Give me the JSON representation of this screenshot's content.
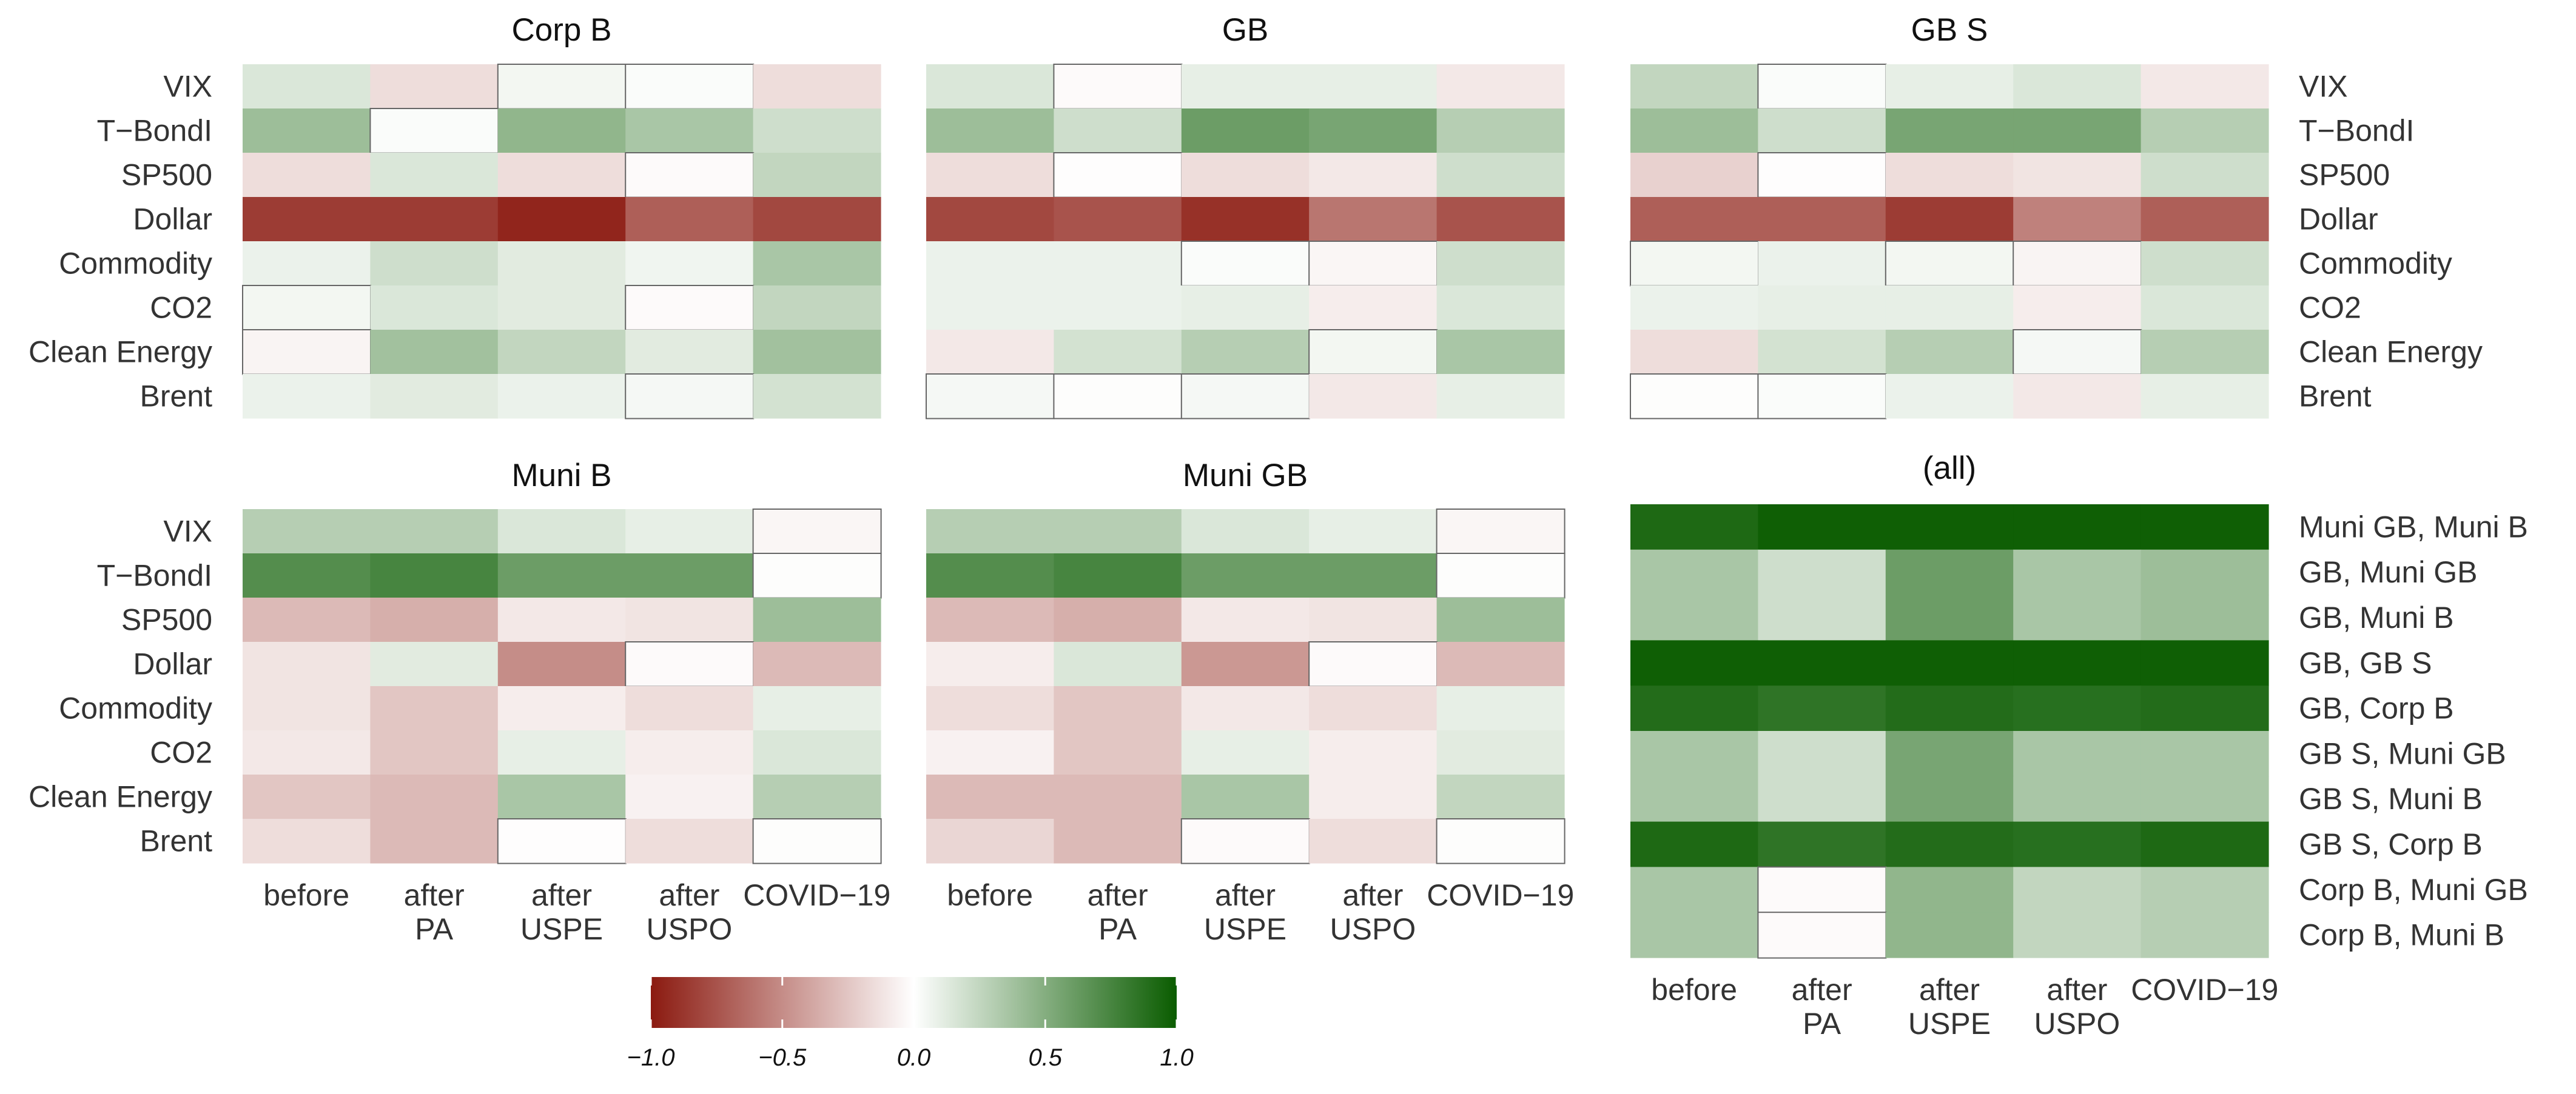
{
  "colorbar": {
    "min": -1.0,
    "max": 1.0,
    "colors": {
      "neg": "#8b1a10",
      "mid": "#ffffff",
      "pos": "#0a5c00"
    },
    "ticks": [
      "−1.0",
      "−0.5",
      "0.0",
      "0.5",
      "1.0"
    ],
    "tick_values": [
      -1.0,
      -0.5,
      0.0,
      0.5,
      1.0
    ]
  },
  "chart_data": [
    {
      "type": "heatmap",
      "title": "Corp B",
      "rows": [
        "VIX",
        "T−BondI",
        "SP500",
        "Dollar",
        "Commodity",
        "CO2",
        "Clean Energy",
        "Brent"
      ],
      "columns": [
        "before",
        "after PA",
        "after USPE",
        "after USPO",
        "COVID−19"
      ],
      "values": [
        [
          0.15,
          -0.15,
          0.05,
          0.02,
          -0.15
        ],
        [
          0.4,
          0.02,
          0.45,
          0.35,
          0.2
        ],
        [
          -0.15,
          0.15,
          -0.15,
          -0.02,
          0.25
        ],
        [
          -0.85,
          -0.85,
          -0.95,
          -0.7,
          -0.8
        ],
        [
          0.08,
          0.2,
          0.12,
          0.06,
          0.35
        ],
        [
          0.05,
          0.15,
          0.12,
          -0.02,
          0.25
        ],
        [
          -0.05,
          0.38,
          0.25,
          0.12,
          0.38
        ],
        [
          0.08,
          0.12,
          0.08,
          0.04,
          0.18
        ]
      ]
    },
    {
      "type": "heatmap",
      "title": "GB",
      "rows": [
        "VIX",
        "T−BondI",
        "SP500",
        "Dollar",
        "Commodity",
        "CO2",
        "Clean Energy",
        "Brent"
      ],
      "columns": [
        "before",
        "after PA",
        "after USPE",
        "after USPO",
        "COVID−19"
      ],
      "values": [
        [
          0.15,
          -0.02,
          0.1,
          0.1,
          -0.1
        ],
        [
          0.4,
          0.2,
          0.6,
          0.55,
          0.3
        ],
        [
          -0.15,
          -0.01,
          -0.15,
          -0.1,
          0.2
        ],
        [
          -0.8,
          -0.75,
          -0.9,
          -0.6,
          -0.75
        ],
        [
          0.08,
          0.08,
          0.02,
          -0.04,
          0.2
        ],
        [
          0.08,
          0.08,
          0.1,
          -0.08,
          0.15
        ],
        [
          -0.1,
          0.18,
          0.3,
          0.05,
          0.35
        ],
        [
          0.04,
          0.01,
          0.04,
          -0.1,
          0.1
        ]
      ]
    },
    {
      "type": "heatmap",
      "title": "GB S",
      "rows": [
        "VIX",
        "T−BondI",
        "SP500",
        "Dollar",
        "Commodity",
        "CO2",
        "Clean Energy",
        "Brent"
      ],
      "columns": [
        "before",
        "after PA",
        "after USPE",
        "after USPO",
        "COVID−19"
      ],
      "values": [
        [
          0.25,
          0.02,
          0.1,
          0.15,
          -0.1
        ],
        [
          0.4,
          0.2,
          0.55,
          0.55,
          0.3
        ],
        [
          -0.2,
          -0.01,
          -0.15,
          -0.12,
          0.2
        ],
        [
          -0.7,
          -0.7,
          -0.85,
          -0.55,
          -0.7
        ],
        [
          0.05,
          0.08,
          0.05,
          -0.05,
          0.2
        ],
        [
          0.08,
          0.1,
          0.1,
          -0.08,
          0.15
        ],
        [
          -0.15,
          0.18,
          0.3,
          0.04,
          0.3
        ],
        [
          0.01,
          0.02,
          0.08,
          -0.1,
          0.1
        ]
      ]
    },
    {
      "type": "heatmap",
      "title": "Muni B",
      "rows": [
        "VIX",
        "T−BondI",
        "SP500",
        "Dollar",
        "Commodity",
        "CO2",
        "Clean Energy",
        "Brent"
      ],
      "columns": [
        "before",
        "after PA",
        "after USPE",
        "after USPO",
        "COVID−19"
      ],
      "values": [
        [
          0.3,
          0.3,
          0.15,
          0.1,
          -0.04
        ],
        [
          0.7,
          0.75,
          0.6,
          0.6,
          0.01
        ],
        [
          -0.3,
          -0.35,
          -0.1,
          -0.12,
          0.4
        ],
        [
          -0.12,
          0.12,
          -0.5,
          -0.02,
          -0.3
        ],
        [
          -0.12,
          -0.25,
          -0.08,
          -0.15,
          0.1
        ],
        [
          -0.1,
          -0.25,
          0.1,
          -0.08,
          0.15
        ],
        [
          -0.25,
          -0.3,
          0.35,
          -0.06,
          0.3
        ],
        [
          -0.15,
          -0.3,
          -0.01,
          -0.15,
          0.01
        ]
      ]
    },
    {
      "type": "heatmap",
      "title": "Muni GB",
      "rows": [
        "VIX",
        "T−BondI",
        "SP500",
        "Dollar",
        "Commodity",
        "CO2",
        "Clean Energy",
        "Brent"
      ],
      "columns": [
        "before",
        "after PA",
        "after USPE",
        "after USPO",
        "COVID−19"
      ],
      "values": [
        [
          0.3,
          0.3,
          0.15,
          0.1,
          -0.04
        ],
        [
          0.7,
          0.75,
          0.6,
          0.6,
          0.01
        ],
        [
          -0.3,
          -0.35,
          -0.1,
          -0.12,
          0.4
        ],
        [
          -0.08,
          0.15,
          -0.45,
          -0.02,
          -0.3
        ],
        [
          -0.15,
          -0.25,
          -0.1,
          -0.15,
          0.1
        ],
        [
          -0.06,
          -0.25,
          0.1,
          -0.08,
          0.12
        ],
        [
          -0.3,
          -0.3,
          0.35,
          -0.08,
          0.25
        ],
        [
          -0.18,
          -0.3,
          -0.02,
          -0.15,
          0.01
        ]
      ]
    },
    {
      "type": "heatmap",
      "title": "(all)",
      "rows": [
        "Muni GB, Muni B",
        "GB, Muni GB",
        "GB, Muni B",
        "GB, GB S",
        "GB, Corp B",
        "GB S, Muni GB",
        "GB S, Muni B",
        "GB S, Corp B",
        "Corp B, Muni GB",
        "Corp B, Muni B"
      ],
      "columns": [
        "before",
        "after PA",
        "after USPE",
        "after USPO",
        "COVID−19"
      ],
      "values": [
        [
          0.92,
          0.98,
          0.98,
          0.98,
          0.98
        ],
        [
          0.35,
          0.2,
          0.6,
          0.35,
          0.4
        ],
        [
          0.35,
          0.2,
          0.6,
          0.35,
          0.4
        ],
        [
          0.98,
          0.98,
          0.98,
          0.98,
          0.98
        ],
        [
          0.9,
          0.85,
          0.9,
          0.88,
          0.9
        ],
        [
          0.35,
          0.2,
          0.55,
          0.35,
          0.35
        ],
        [
          0.35,
          0.2,
          0.55,
          0.35,
          0.35
        ],
        [
          0.92,
          0.85,
          0.9,
          0.88,
          0.92
        ],
        [
          0.35,
          -0.02,
          0.45,
          0.25,
          0.3
        ],
        [
          0.35,
          -0.02,
          0.45,
          0.25,
          0.3
        ]
      ]
    }
  ]
}
